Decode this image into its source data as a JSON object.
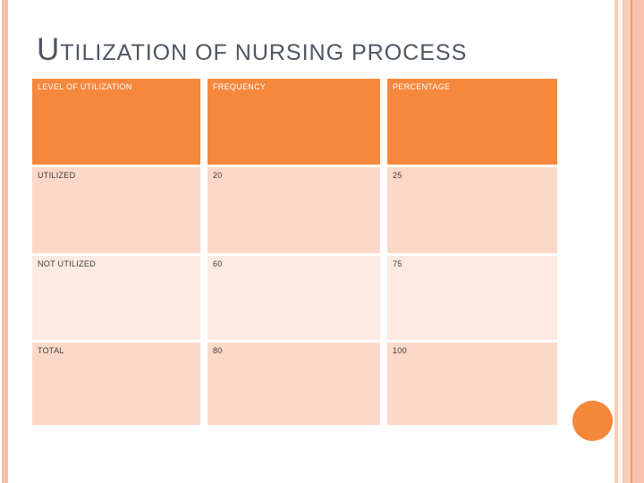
{
  "slide": {
    "title_initial": "U",
    "title_rest": "TILIZATION OF NURSING PROCESS"
  },
  "table": {
    "headers": [
      "LEVEL OF UTILIZATION",
      "FREQUENCY",
      "PERCENTAGE"
    ],
    "rows": [
      {
        "label": "UTILIZED",
        "frequency": "20",
        "percentage": "25"
      },
      {
        "label": "NOT UTILIZED",
        "frequency": "60",
        "percentage": "75"
      },
      {
        "label": "TOTAL",
        "frequency": "80",
        "percentage": "100"
      }
    ]
  },
  "colors": {
    "header_orange": "#f6883e",
    "row_peach": "#fcd8c9",
    "row_light_peach": "#fdeae2",
    "accent_circle_orange": "#f5873b",
    "edge_stripe_peach": "#f5bfa9",
    "edge_stripe_orange_line": "#ec9b66",
    "title_gray": "#4d5661"
  }
}
